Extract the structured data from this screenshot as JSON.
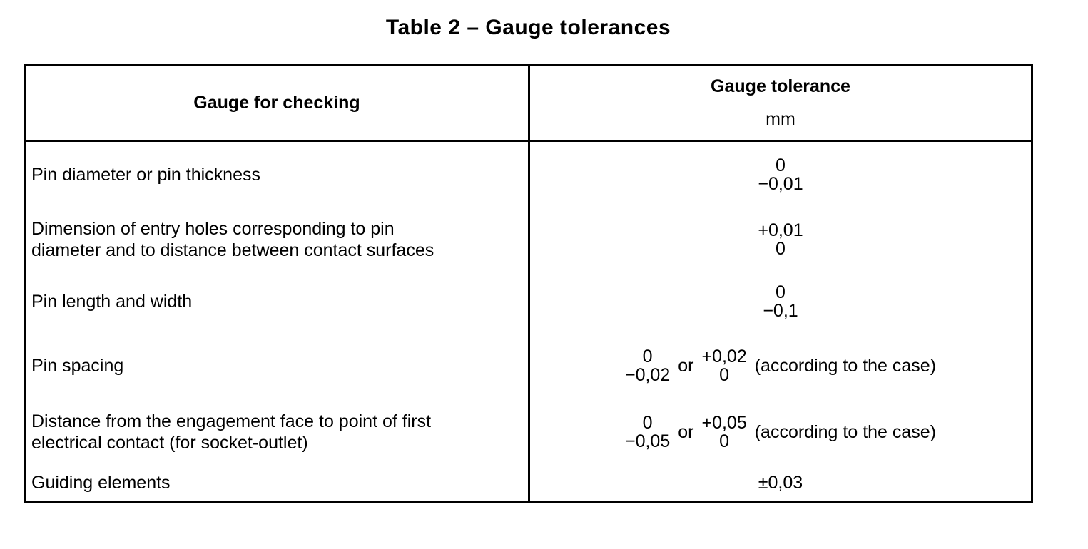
{
  "title": "Table 2 – Gauge tolerances",
  "table": {
    "header": {
      "col_checking": "Gauge for checking",
      "col_tolerance": "Gauge tolerance",
      "unit": "mm"
    },
    "rows": [
      {
        "label_lines": [
          "Pin diameter or pin thickness"
        ],
        "tolerance": {
          "type": "stack",
          "top": "0",
          "bottom": "−0,01"
        }
      },
      {
        "label_lines": [
          "Dimension of entry holes corresponding to pin",
          "diameter and to distance between contact surfaces"
        ],
        "tolerance": {
          "type": "stack",
          "top": "+0,01",
          "bottom": "0"
        }
      },
      {
        "label_lines": [
          "Pin length and width"
        ],
        "tolerance": {
          "type": "stack",
          "top": "0",
          "bottom": "−0,1"
        }
      },
      {
        "label_lines": [
          "Pin spacing"
        ],
        "tolerance": {
          "type": "alternative",
          "stack1": {
            "top": "0",
            "bottom": "−0,02"
          },
          "conjunction": "or",
          "stack2": {
            "top": "+0,02",
            "bottom": "0"
          },
          "note": "(according to the case)"
        }
      },
      {
        "label_lines": [
          "Distance from the engagement face to point of first",
          "electrical contact (for socket-outlet)"
        ],
        "tolerance": {
          "type": "alternative",
          "stack1": {
            "top": "0",
            "bottom": "−0,05"
          },
          "conjunction": "or",
          "stack2": {
            "top": "+0,05",
            "bottom": "0"
          },
          "note": "(according to the case)"
        }
      },
      {
        "label_lines": [
          "Guiding elements"
        ],
        "tolerance": {
          "type": "text",
          "value": "±0,03"
        }
      }
    ]
  },
  "colors": {
    "background": "#ffffff",
    "text": "#000000",
    "border": "#000000"
  }
}
